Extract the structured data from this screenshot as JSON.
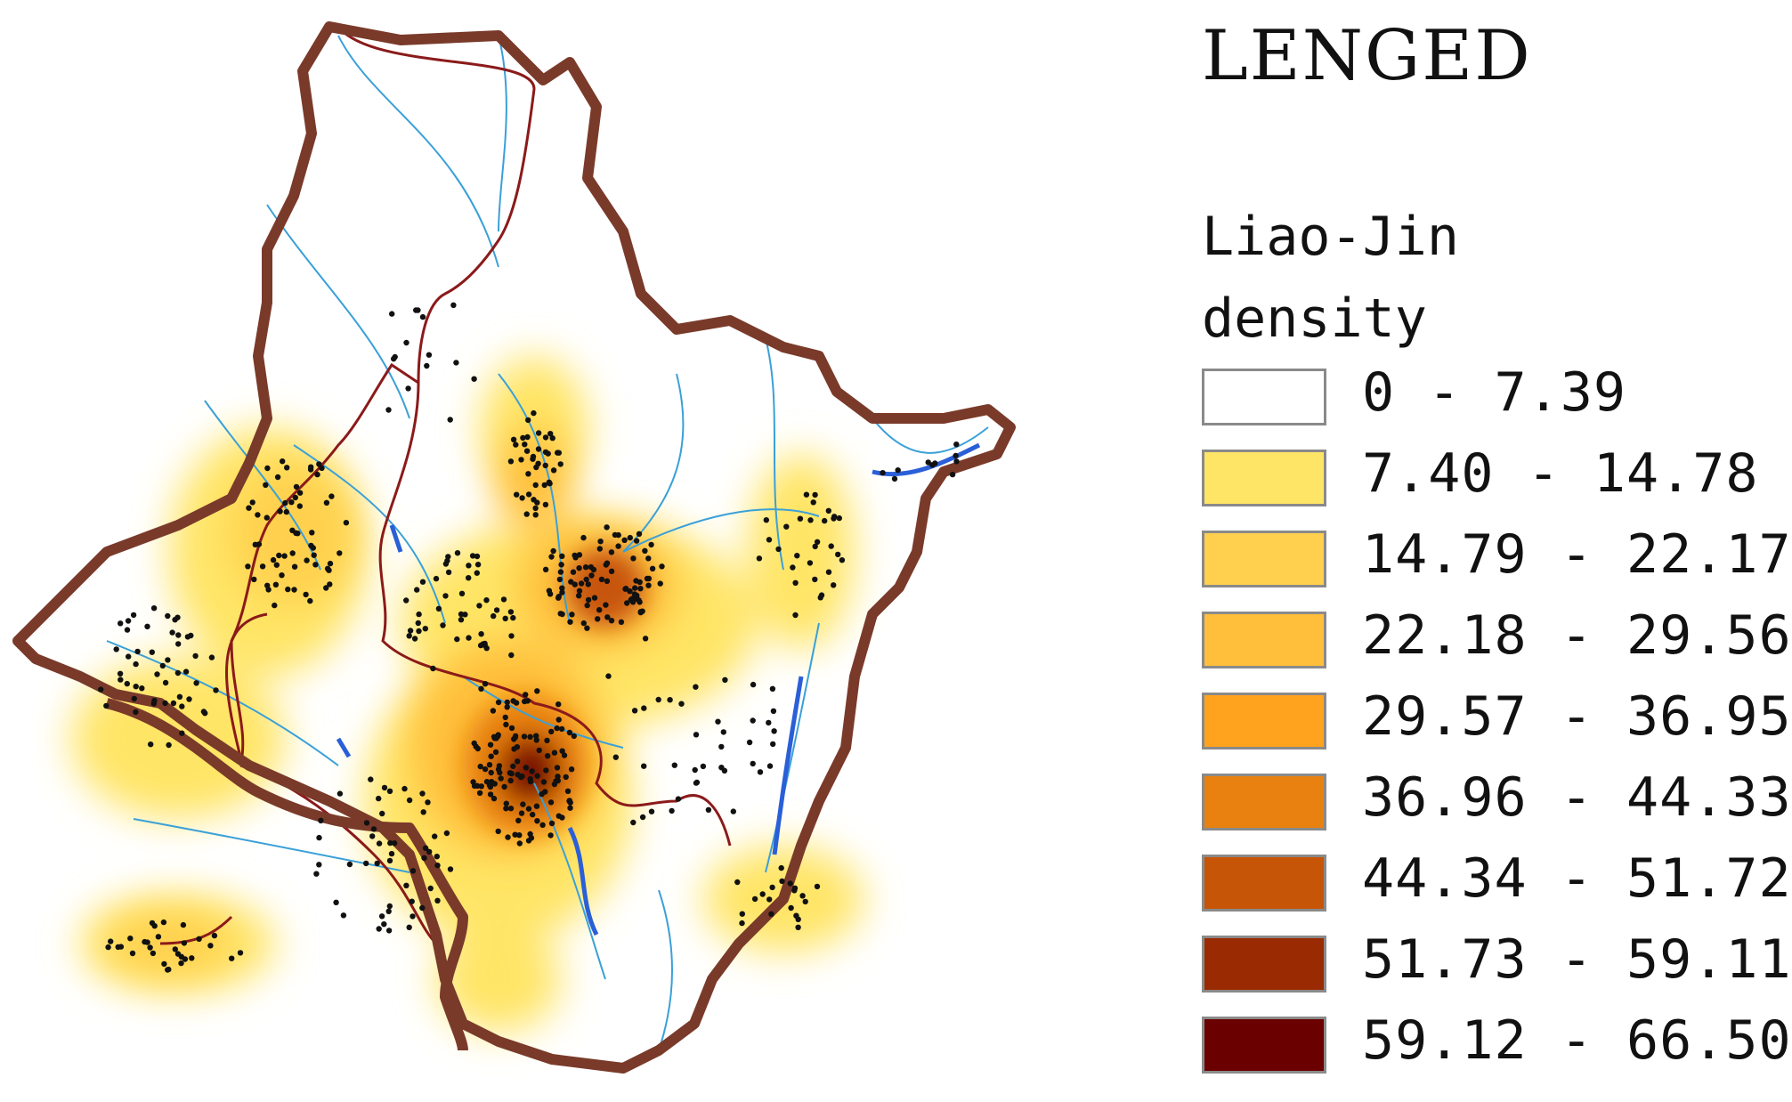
{
  "legend": {
    "title": "LENGED",
    "subtitle": "Liao-Jin\ndensity",
    "classes": [
      {
        "label": "0 - 7.39",
        "color": "#ffffff"
      },
      {
        "label": "7.40 - 14.78",
        "color": "#ffe566"
      },
      {
        "label": "14.79 - 22.17",
        "color": "#ffd04d"
      },
      {
        "label": "22.18 - 29.56",
        "color": "#ffbf3a"
      },
      {
        "label": "29.57 - 36.95",
        "color": "#ffa31f"
      },
      {
        "label": "36.96 - 44.33",
        "color": "#e8810f"
      },
      {
        "label": "44.34 - 51.72",
        "color": "#c75508"
      },
      {
        "label": "51.73 - 59.11",
        "color": "#9a2a02"
      },
      {
        "label": "59.12 - 66.50",
        "color": "#6b0000"
      }
    ]
  },
  "map": {
    "outer_boundary_color": "#7a3a2a",
    "inner_boundary_color": "#8b1a1a",
    "river_color": "#3aa0d8",
    "lake_color": "#2a5fd8",
    "site_color": "#111111",
    "icons": [
      "site-dot-icon"
    ]
  }
}
